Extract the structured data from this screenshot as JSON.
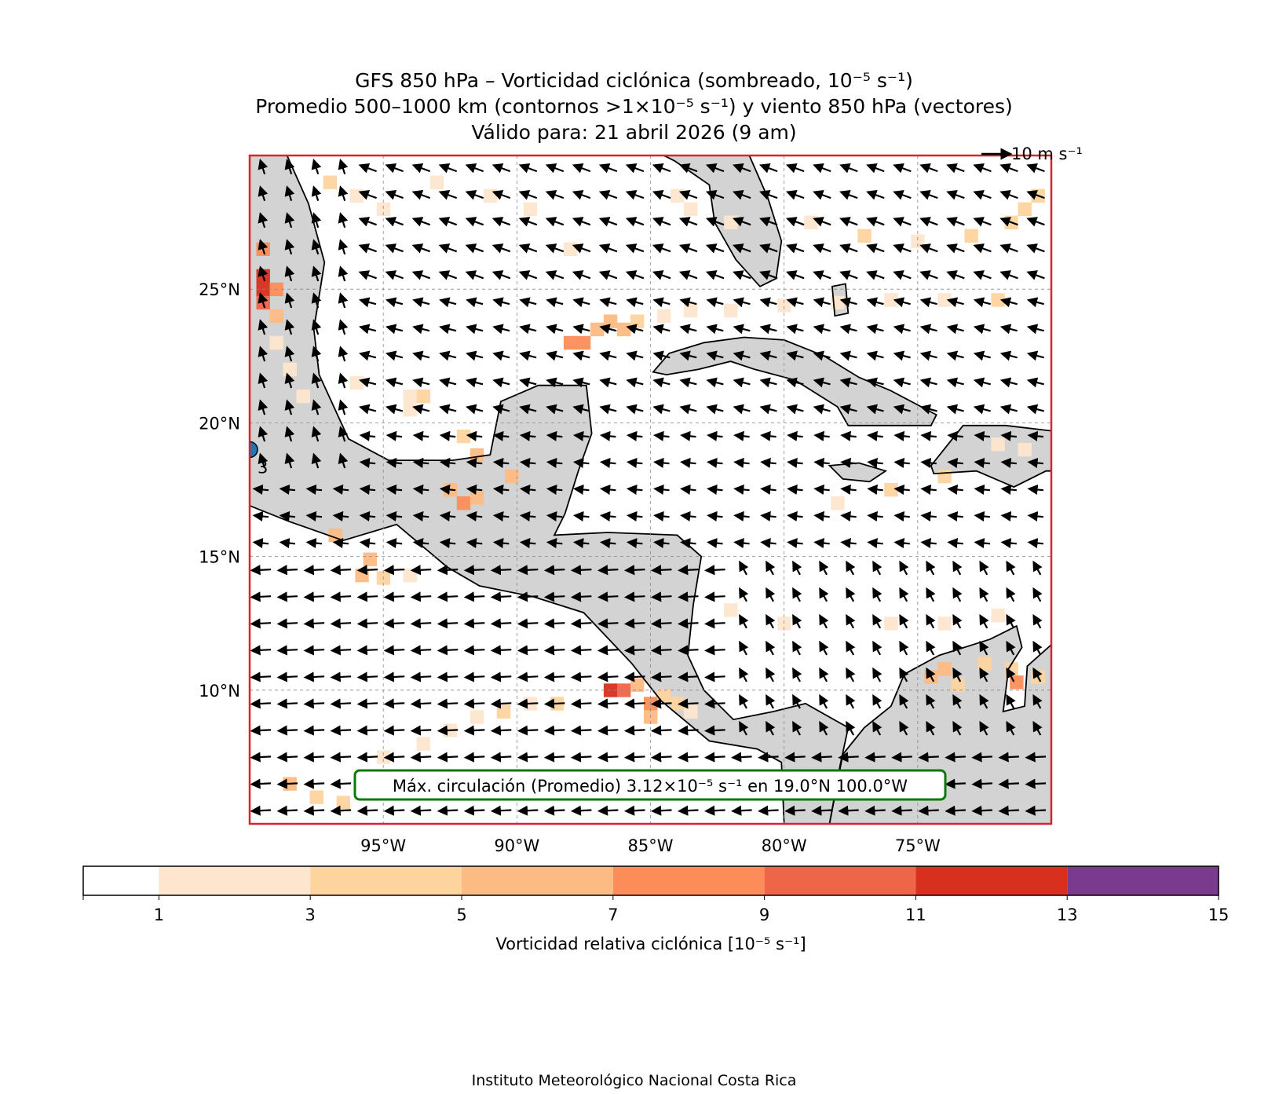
{
  "title": {
    "line1": "GFS 850 hPa – Vorticidad ciclónica (sombreado, 10⁻⁵ s⁻¹)",
    "line2": "Promedio 500–1000 km (contornos >1×10⁻⁵ s⁻¹) y viento 850 hPa (vectores)",
    "line3": "Válido para: 21 abril 2026 (9 am)"
  },
  "quiver_key_label": "10 m s⁻¹",
  "map": {
    "lon_range": [
      -100,
      -70
    ],
    "lat_range": [
      5,
      30
    ],
    "lat_ticks": [
      {
        "value": 25,
        "label": "25°N"
      },
      {
        "value": 20,
        "label": "20°N"
      },
      {
        "value": 15,
        "label": "15°N"
      },
      {
        "value": 10,
        "label": "10°N"
      }
    ],
    "lon_ticks": [
      {
        "value": -95,
        "label": "95°W"
      },
      {
        "value": -90,
        "label": "90°W"
      },
      {
        "value": -85,
        "label": "85°W"
      },
      {
        "value": -80,
        "label": "80°W"
      },
      {
        "value": -75,
        "label": "75°W"
      }
    ],
    "land_color": "#d3d3d3",
    "frame_color": "#d62728",
    "max_marker": {
      "lat": 19.0,
      "lon": -100.0,
      "contour_label": "3",
      "color": "#1f77b4"
    },
    "annotation": "Máx. circulación (Promedio) 3.12×10⁻⁵ s⁻¹ en 19.0°N 100.0°W",
    "annotation_border_color": "#0a7a0a"
  },
  "colorbar": {
    "label": "Vorticidad relativa ciclónica [10⁻⁵ s⁻¹]",
    "ticks": [
      "1",
      "3",
      "5",
      "7",
      "9",
      "11",
      "13",
      "15"
    ],
    "levels": [
      0,
      1,
      3,
      5,
      7,
      9,
      11,
      13,
      15
    ],
    "colors": [
      "#ffffff",
      "#fee6ce",
      "#fdd49e",
      "#fdbb84",
      "#fc8d59",
      "#ef6548",
      "#d7301f",
      "#7a3b8f"
    ]
  },
  "footer": "Instituto Meteorológico Nacional Costa Rica"
}
